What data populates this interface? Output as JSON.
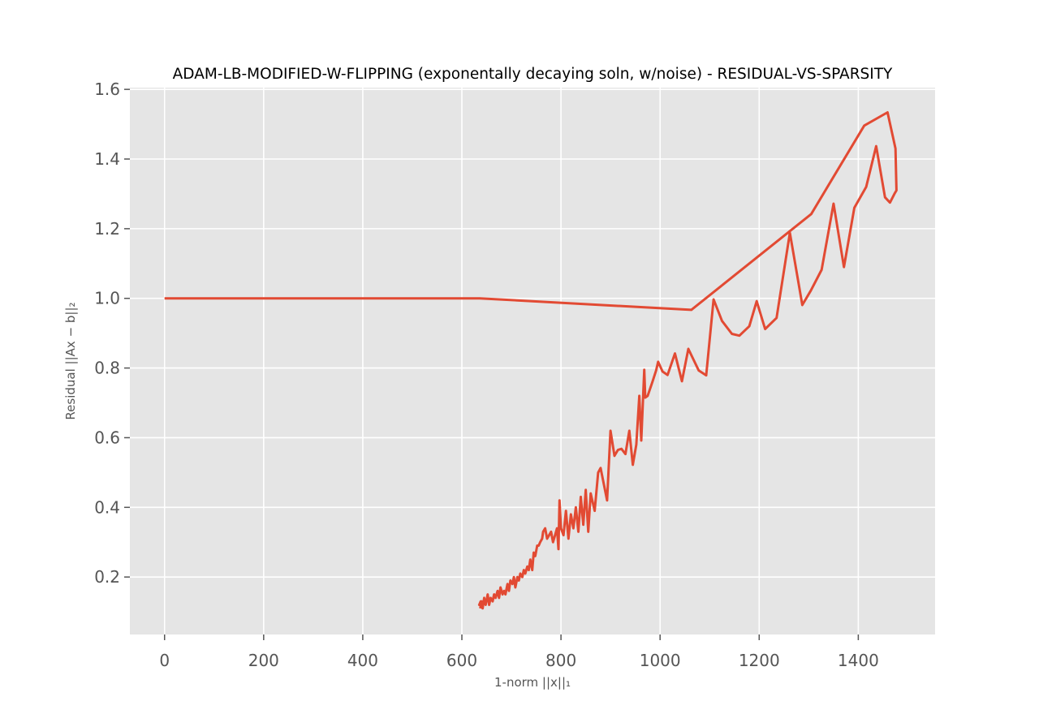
{
  "chart_data": {
    "type": "line",
    "title": "ADAM-LB-MODIFIED-W-FLIPPING (exponentally decaying soln, w/noise) - RESIDUAL-VS-SPARSITY",
    "xlabel": "1-norm ||x||₁",
    "ylabel": "Residual ||Ax − b||₂",
    "xlim": [
      -70,
      1555
    ],
    "ylim": [
      0.035,
      1.605
    ],
    "xticks": [
      0,
      200,
      400,
      600,
      800,
      1000,
      1200,
      1400
    ],
    "yticks": [
      0.2,
      0.4,
      0.6,
      0.8,
      1.0,
      1.2,
      1.4,
      1.6
    ],
    "xtick_labels": [
      "0",
      "200",
      "400",
      "600",
      "800",
      "1000",
      "1200",
      "1400"
    ],
    "ytick_labels": [
      "0.2",
      "0.4",
      "0.6",
      "0.8",
      "1.0",
      "1.2",
      "1.4",
      "1.6"
    ],
    "grid": true,
    "background": "#E5E5E5",
    "line_color": "#E24A33",
    "series": [
      {
        "x": [
          0,
          636,
          1063,
          1305,
          1412,
          1459,
          1475,
          1477,
          1473,
          1464,
          1454,
          1436,
          1416,
          1392,
          1371,
          1350,
          1326,
          1304,
          1287,
          1262,
          1235,
          1212,
          1195,
          1180,
          1160,
          1145,
          1125,
          1108,
          1093,
          1078,
          1057,
          1044,
          1030,
          1015,
          1005,
          996,
          992,
          985,
          975,
          970,
          968,
          962,
          958,
          952,
          945,
          938,
          930,
          922,
          915,
          908,
          900,
          893,
          880,
          875,
          868,
          860,
          855,
          850,
          845,
          840,
          835,
          830,
          825,
          820,
          815,
          810,
          805,
          800,
          797,
          795,
          792,
          788,
          784,
          780,
          776,
          772,
          768,
          764,
          762,
          758,
          755,
          752,
          748,
          745,
          742,
          738,
          735,
          732,
          728,
          725,
          722,
          718,
          715,
          712,
          708,
          705,
          702,
          698,
          695,
          692,
          688,
          685,
          682,
          678,
          675,
          672,
          668,
          665,
          662,
          658,
          655,
          652,
          648,
          645,
          642,
          638,
          635,
          640,
          637
        ],
        "y": [
          1.0,
          1.0,
          0.967,
          1.242,
          1.496,
          1.534,
          1.43,
          1.31,
          1.3,
          1.275,
          1.29,
          1.437,
          1.32,
          1.26,
          1.09,
          1.272,
          1.082,
          1.022,
          0.981,
          1.188,
          0.944,
          0.912,
          0.992,
          0.92,
          0.893,
          0.898,
          0.935,
          0.997,
          0.779,
          0.793,
          0.855,
          0.762,
          0.842,
          0.78,
          0.79,
          0.818,
          0.793,
          0.762,
          0.72,
          0.715,
          0.795,
          0.592,
          0.72,
          0.58,
          0.522,
          0.62,
          0.553,
          0.568,
          0.565,
          0.548,
          0.62,
          0.42,
          0.513,
          0.5,
          0.39,
          0.44,
          0.33,
          0.45,
          0.35,
          0.43,
          0.33,
          0.4,
          0.34,
          0.38,
          0.31,
          0.39,
          0.32,
          0.34,
          0.42,
          0.28,
          0.34,
          0.32,
          0.3,
          0.33,
          0.32,
          0.31,
          0.34,
          0.33,
          0.31,
          0.3,
          0.29,
          0.29,
          0.26,
          0.27,
          0.22,
          0.25,
          0.22,
          0.23,
          0.21,
          0.22,
          0.2,
          0.21,
          0.19,
          0.2,
          0.17,
          0.2,
          0.18,
          0.19,
          0.16,
          0.18,
          0.15,
          0.16,
          0.15,
          0.17,
          0.14,
          0.16,
          0.14,
          0.15,
          0.13,
          0.14,
          0.12,
          0.15,
          0.12,
          0.14,
          0.11,
          0.13,
          0.12,
          0.13,
          0.11
        ]
      }
    ]
  }
}
